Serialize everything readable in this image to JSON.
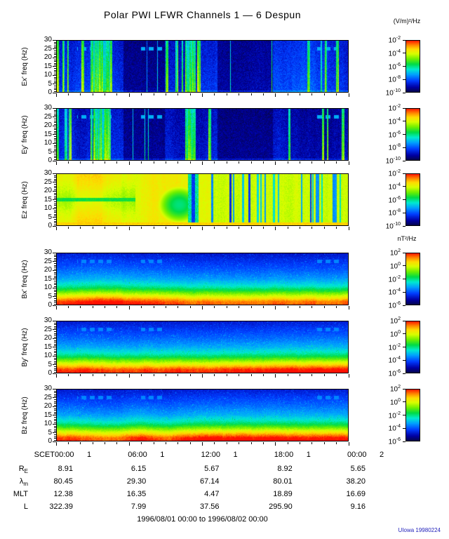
{
  "title": "Polar PWI LFWR Channels 1 — 6 Despun",
  "xaxis": {
    "name": "SCET",
    "tick_times": [
      "00:00",
      "06:00",
      "12:00",
      "18:00",
      "00:00"
    ],
    "tick_days": [
      "1",
      "1",
      "1",
      "1",
      "2"
    ]
  },
  "yaxis": {
    "max": 30,
    "ticks": [
      0,
      5,
      10,
      15,
      20,
      25,
      30
    ]
  },
  "panels": [
    {
      "id": "ex",
      "ylabel": "Ex' freq (Hz)",
      "style": "electric",
      "seed": 11
    },
    {
      "id": "ey",
      "ylabel": "Ey' freq (Hz)",
      "style": "electric",
      "seed": 23
    },
    {
      "id": "ez",
      "ylabel": "Ez freq (Hz)",
      "style": "ez",
      "seed": 37
    },
    {
      "id": "bx",
      "ylabel": "Bx' freq (Hz)",
      "style": "magnetic",
      "seed": 41
    },
    {
      "id": "by",
      "ylabel": "By' freq (Hz)",
      "style": "magnetic",
      "seed": 53
    },
    {
      "id": "bz",
      "ylabel": "Bz freq (Hz)",
      "style": "magnetic",
      "seed": 67
    }
  ],
  "colorbars": [
    {
      "unit": "(V/m)²/Hz",
      "tick_exps": [
        "-2",
        "-4",
        "-6",
        "-8",
        "-10"
      ],
      "min": "1e-10",
      "max": "1e-2"
    },
    {
      "unit": "nT²/Hz",
      "tick_exps": [
        "2",
        "0",
        "-2",
        "-4",
        "-6"
      ],
      "min": "1e-6",
      "max": "1e2"
    }
  ],
  "ephemeris": {
    "rows": [
      {
        "key": "re",
        "main": "R",
        "sub": "E",
        "values": [
          "8.91",
          "6.15",
          "5.67",
          "8.92",
          "5.65"
        ]
      },
      {
        "key": "lambda-m",
        "main": "λ",
        "sub": "m",
        "values": [
          "80.45",
          "29.30",
          "67.14",
          "80.01",
          "38.20"
        ]
      },
      {
        "key": "mlt",
        "main": "MLT",
        "sub": "",
        "values": [
          "12.38",
          "16.35",
          "4.47",
          "18.89",
          "16.69"
        ]
      },
      {
        "key": "l",
        "main": "L",
        "sub": "",
        "values": [
          "322.39",
          "7.99",
          "37.56",
          "295.90",
          "9.16"
        ]
      }
    ]
  },
  "footer": {
    "date_range": "1996/08/01 00:00 to 1996/08/02 00:00",
    "credit": "UIowa 19980224"
  },
  "chart_data": [
    {
      "type": "heatmap",
      "series": "Ex'",
      "ylabel": "Ex' freq (Hz)",
      "ylim": [
        0,
        30
      ],
      "yticks": [
        0,
        5,
        10,
        15,
        20,
        25,
        30
      ],
      "x_start": "1996/08/01 00:00",
      "x_end": "1996/08/02 00:00",
      "xticks": [
        "00:00",
        "06:00",
        "12:00",
        "18:00",
        "00:00"
      ],
      "unit": "(V/m)²/Hz",
      "scale": [
        "1e-10",
        "1e-2"
      ],
      "summary": "Dark-blue background (~1e-9) with dense full-height vertical broadband bursts reaching ~1e-5 to 1e-4; strong burst clusters ~03:00-04:30 and ~10:30-11:30; very quiet dark intervals ~05:30-09:00 and ~13:00-17:30; faint interference dashes near 25 Hz."
    },
    {
      "type": "heatmap",
      "series": "Ey'",
      "ylabel": "Ey' freq (Hz)",
      "ylim": [
        0,
        30
      ],
      "yticks": [
        0,
        5,
        10,
        15,
        20,
        25,
        30
      ],
      "x_start": "1996/08/01 00:00",
      "x_end": "1996/08/02 00:00",
      "xticks": [
        "00:00",
        "06:00",
        "12:00",
        "18:00",
        "00:00"
      ],
      "unit": "(V/m)²/Hz",
      "scale": [
        "1e-10",
        "1e-2"
      ],
      "summary": "Nearly identical to Ex': dark-blue background with vertical broadband bursts up to ~1e-4, quiet dark intervals mid-morning and afternoon, interference dashes near 25 Hz."
    },
    {
      "type": "heatmap",
      "series": "Ez",
      "ylabel": "Ez freq (Hz)",
      "ylim": [
        0,
        30
      ],
      "yticks": [
        0,
        5,
        10,
        15,
        20,
        25,
        30
      ],
      "x_start": "1996/08/01 00:00",
      "x_end": "1996/08/02 00:00",
      "xticks": [
        "00:00",
        "06:00",
        "12:00",
        "18:00",
        "00:00"
      ],
      "unit": "(V/m)²/Hz",
      "scale": [
        "1e-10",
        "1e-2"
      ],
      "summary": "Intense continuum ~1e-4 to 1e-3 (yellow/orange) at all frequencies; greener depression ~08:00-12:00 centered near 12 Hz with a deep narrow blue dropout near 11:15; persistent enhanced line near 15 Hz before 06:30; many narrow dark dropout stripes from 12:00 to 24:00; brightest below 2 Hz."
    },
    {
      "type": "heatmap",
      "series": "Bx'",
      "ylabel": "Bx' freq (Hz)",
      "ylim": [
        0,
        30
      ],
      "yticks": [
        0,
        5,
        10,
        15,
        20,
        25,
        30
      ],
      "x_start": "1996/08/01 00:00",
      "x_end": "1996/08/02 00:00",
      "xticks": [
        "00:00",
        "06:00",
        "12:00",
        "18:00",
        "00:00"
      ],
      "unit": "nT²/Hz",
      "scale": [
        "1e-6",
        "1e2"
      ],
      "summary": "Smooth power-law spectrum nearly constant in time: ~1e1-1e2 below 2 Hz (red band) decreasing monotonically to ~1e-5 near 30 Hz (dark blue); faint interference dashes near 25 Hz."
    },
    {
      "type": "heatmap",
      "series": "By'",
      "ylabel": "By' freq (Hz)",
      "ylim": [
        0,
        30
      ],
      "yticks": [
        0,
        5,
        10,
        15,
        20,
        25,
        30
      ],
      "x_start": "1996/08/01 00:00",
      "x_end": "1996/08/02 00:00",
      "xticks": [
        "00:00",
        "06:00",
        "12:00",
        "18:00",
        "00:00"
      ],
      "unit": "nT²/Hz",
      "scale": [
        "1e-6",
        "1e2"
      ],
      "summary": "Same structure as Bx': intense low-frequency red band below ~3 Hz fading through yellow/green/cyan to dark blue by 30 Hz, steady across the day."
    },
    {
      "type": "heatmap",
      "series": "Bz",
      "ylabel": "Bz freq (Hz)",
      "ylim": [
        0,
        30
      ],
      "yticks": [
        0,
        5,
        10,
        15,
        20,
        25,
        30
      ],
      "x_start": "1996/08/01 00:00",
      "x_end": "1996/08/02 00:00",
      "xticks": [
        "00:00",
        "06:00",
        "12:00",
        "18:00",
        "00:00"
      ],
      "unit": "nT²/Hz",
      "scale": [
        "1e-6",
        "1e2"
      ],
      "summary": "Same structure as Bx'/By': monotonic decrease from ~1e1-1e2 at lowest frequencies to ~1e-5 at 30 Hz, nearly uniform in time."
    }
  ]
}
